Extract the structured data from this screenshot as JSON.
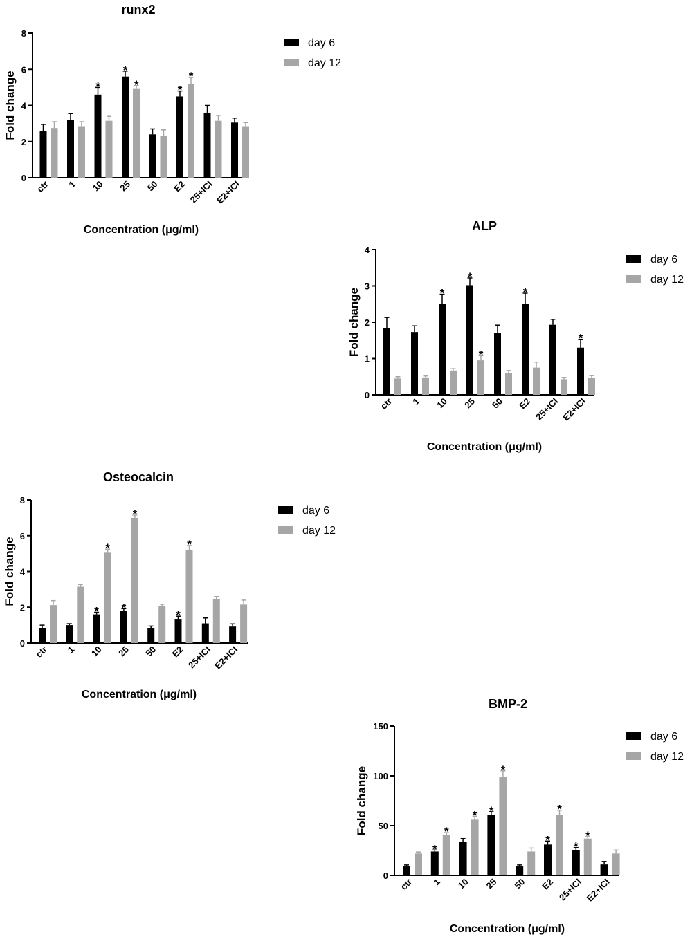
{
  "colors": {
    "day6": "#000000",
    "day12": "#a6a6a6",
    "axis": "#000000"
  },
  "chart_data": [
    {
      "type": "bar",
      "title": "runx2",
      "xlabel": "Concentration (μg/ml)",
      "ylabel": "Fold change",
      "ylim": [
        0,
        8
      ],
      "yticks": [
        0,
        2,
        4,
        6,
        8
      ],
      "categories": [
        "ctr",
        "1",
        "10",
        "25",
        "50",
        "E2",
        "25+ICI",
        "E2+ICI"
      ],
      "legend_position": "top-right",
      "series": [
        {
          "name": "day 6",
          "values": [
            2.6,
            3.2,
            4.6,
            5.6,
            2.4,
            4.5,
            3.6,
            3.05
          ],
          "errors": [
            0.35,
            0.35,
            0.4,
            0.3,
            0.3,
            0.3,
            0.4,
            0.25
          ],
          "significant": [
            false,
            false,
            true,
            true,
            false,
            true,
            false,
            false
          ]
        },
        {
          "name": "day 12",
          "values": [
            2.75,
            2.85,
            3.15,
            4.95,
            2.3,
            5.2,
            3.15,
            2.85
          ],
          "errors": [
            0.35,
            0.25,
            0.25,
            0.15,
            0.35,
            0.35,
            0.3,
            0.2
          ],
          "significant": [
            false,
            false,
            false,
            true,
            false,
            true,
            false,
            false
          ]
        }
      ]
    },
    {
      "type": "bar",
      "title": "ALP",
      "xlabel": "Concentration (μg/ml)",
      "ylabel": "Fold change",
      "ylim": [
        0,
        4
      ],
      "yticks": [
        0,
        1,
        2,
        3,
        4
      ],
      "categories": [
        "ctr",
        "1",
        "10",
        "25",
        "50",
        "E2",
        "25+ICI",
        "E2+ICI"
      ],
      "legend_position": "top-right",
      "series": [
        {
          "name": "day 6",
          "values": [
            1.83,
            1.73,
            2.5,
            3.02,
            1.7,
            2.5,
            1.93,
            1.3
          ],
          "errors": [
            0.3,
            0.17,
            0.27,
            0.2,
            0.22,
            0.3,
            0.15,
            0.23
          ],
          "significant": [
            false,
            false,
            true,
            true,
            false,
            true,
            false,
            true
          ]
        },
        {
          "name": "day 12",
          "values": [
            0.45,
            0.48,
            0.67,
            0.95,
            0.6,
            0.75,
            0.43,
            0.47
          ],
          "errors": [
            0.05,
            0.04,
            0.05,
            0.13,
            0.07,
            0.15,
            0.05,
            0.06
          ],
          "significant": [
            false,
            false,
            false,
            true,
            false,
            false,
            false,
            false
          ]
        }
      ]
    },
    {
      "type": "bar",
      "title": "Osteocalcin",
      "xlabel": "Concentration (μg/ml)",
      "ylabel": "Fold change",
      "ylim": [
        0,
        8
      ],
      "yticks": [
        0,
        2,
        4,
        6,
        8
      ],
      "categories": [
        "ctr",
        "1",
        "10",
        "25",
        "50",
        "E2",
        "25+ICI",
        "E2+ICI"
      ],
      "legend_position": "top-right",
      "series": [
        {
          "name": "day 6",
          "values": [
            0.85,
            1.0,
            1.6,
            1.8,
            0.85,
            1.35,
            1.1,
            0.92
          ],
          "errors": [
            0.15,
            0.08,
            0.12,
            0.12,
            0.1,
            0.15,
            0.3,
            0.15
          ],
          "significant": [
            false,
            false,
            true,
            true,
            false,
            true,
            false,
            false
          ]
        },
        {
          "name": "day 12",
          "values": [
            2.12,
            3.15,
            5.05,
            7.0,
            2.05,
            5.2,
            2.45,
            2.15
          ],
          "errors": [
            0.25,
            0.12,
            0.2,
            0.15,
            0.12,
            0.25,
            0.15,
            0.25
          ],
          "significant": [
            false,
            false,
            true,
            true,
            false,
            true,
            false,
            false
          ]
        }
      ]
    },
    {
      "type": "bar",
      "title": "BMP-2",
      "xlabel": "Concentration (μg/ml)",
      "ylabel": "Fold change",
      "ylim": [
        0,
        150
      ],
      "yticks": [
        0,
        50,
        100,
        150
      ],
      "categories": [
        "ctr",
        "1",
        "10",
        "25",
        "50",
        "E2",
        "25+ICI",
        "E2+ICI"
      ],
      "legend_position": "top-right",
      "series": [
        {
          "name": "day 6",
          "values": [
            9,
            24,
            34,
            61,
            9,
            31,
            25,
            11
          ],
          "errors": [
            1.5,
            1.5,
            3,
            3,
            1.5,
            3.5,
            3,
            3
          ],
          "significant": [
            false,
            true,
            false,
            true,
            false,
            true,
            true,
            false
          ]
        },
        {
          "name": "day 12",
          "values": [
            22,
            41,
            56,
            99,
            24,
            61,
            37,
            22
          ],
          "errors": [
            1.5,
            2,
            3.5,
            6,
            3.5,
            4.5,
            2,
            3.5
          ],
          "significant": [
            false,
            true,
            true,
            true,
            false,
            true,
            true,
            false
          ]
        }
      ]
    }
  ]
}
